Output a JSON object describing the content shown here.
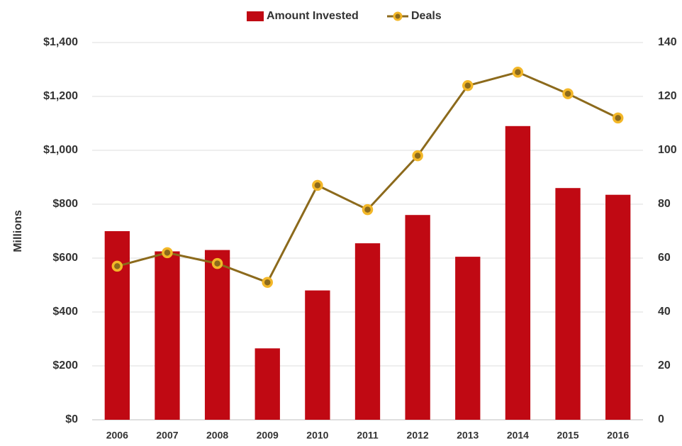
{
  "chart_data": {
    "type": "bar_line",
    "y_label": "Millions",
    "categories": [
      "2006",
      "2007",
      "2008",
      "2009",
      "2010",
      "2011",
      "2012",
      "2013",
      "2014",
      "2015",
      "2016"
    ],
    "series": [
      {
        "name": "Amount Invested",
        "type": "bar",
        "color": "#c00913",
        "values": [
          700,
          625,
          630,
          265,
          480,
          655,
          760,
          605,
          1090,
          860,
          835
        ]
      },
      {
        "name": "Deals",
        "type": "line",
        "axis": "y2",
        "color": "#8c6a1c",
        "marker_color": "#f3b728",
        "values": [
          57,
          62,
          58,
          51,
          87,
          78,
          98,
          124,
          129,
          121,
          112
        ]
      }
    ],
    "ylim": [
      0,
      1400
    ],
    "yticks": [
      {
        "value": 0,
        "label": "$0"
      },
      {
        "value": 200,
        "label": "$200"
      },
      {
        "value": 400,
        "label": "$400"
      },
      {
        "value": 600,
        "label": "$600"
      },
      {
        "value": 800,
        "label": "$800"
      },
      {
        "value": 1000,
        "label": "$1,000"
      },
      {
        "value": 1200,
        "label": "$1,200"
      },
      {
        "value": 1400,
        "label": "$1,400"
      }
    ],
    "y2lim": [
      0,
      140
    ],
    "y2ticks": [
      0,
      20,
      40,
      60,
      80,
      100,
      120,
      140
    ],
    "grid": true,
    "legend": "top"
  }
}
